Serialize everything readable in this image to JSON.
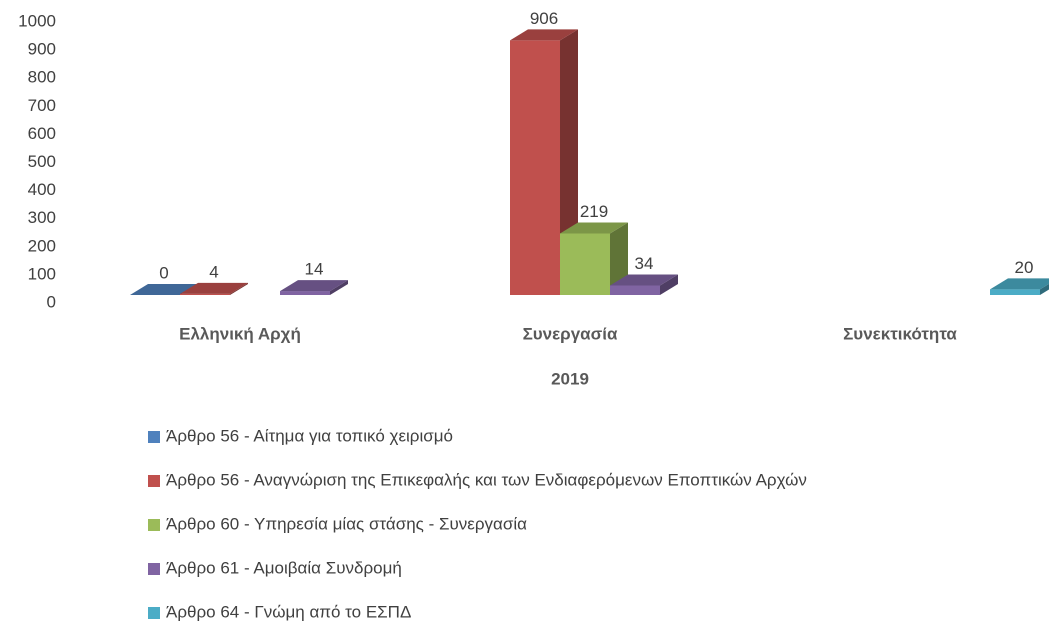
{
  "chart_data": {
    "type": "bar3d",
    "x_label": "2019",
    "categories": [
      "Ελληνική Αρχή",
      "Συνεργασία",
      "Συνεκτικότητα"
    ],
    "series": [
      {
        "name": "Άρθρο 56 - Αίτημα για τοπικό χειρισμό",
        "color": "#4f81bd",
        "values": [
          0,
          null,
          null
        ]
      },
      {
        "name": "Άρθρο 56 - Αναγνώριση της Επικεφαλής και των Ενδιαφερόμενων Εποπτικών Αρχών",
        "color": "#c0504d",
        "values": [
          4,
          906,
          null
        ]
      },
      {
        "name": "Άρθρο 60 - Υπηρεσία μίας στάσης - Συνεργασία",
        "color": "#9bbb59",
        "values": [
          null,
          219,
          null
        ]
      },
      {
        "name": "Άρθρο 61 - Αμοιβαία Συνδρομή",
        "color": "#8064a2",
        "values": [
          14,
          34,
          null
        ]
      },
      {
        "name": "Άρθρο 64 - Γνώμη από το ΕΣΠΔ",
        "color": "#4bacc6",
        "values": [
          null,
          null,
          20
        ]
      }
    ],
    "ylim": [
      0,
      1000
    ],
    "yticks": [
      0,
      100,
      200,
      300,
      400,
      500,
      600,
      700,
      800,
      900,
      1000
    ],
    "grid": false,
    "legend": "bottom"
  }
}
